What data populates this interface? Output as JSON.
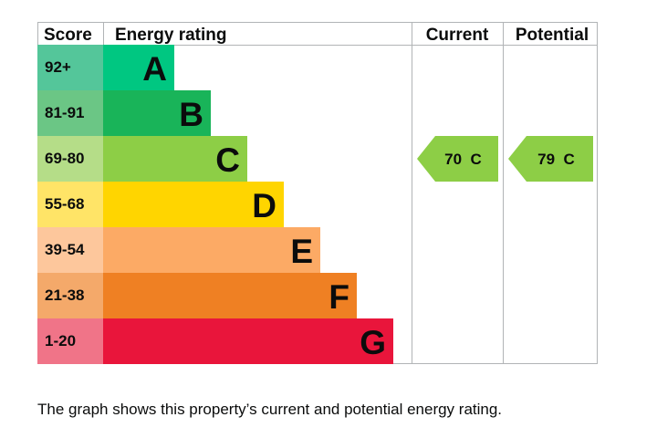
{
  "chart_data": {
    "type": "bar",
    "headers": {
      "score": "Score",
      "rating": "Energy rating",
      "current": "Current",
      "potential": "Potential"
    },
    "bands": [
      {
        "score": "92+",
        "letter": "A",
        "min": 92,
        "max": 100,
        "color": "#00c781",
        "score_bg": "#54c69a"
      },
      {
        "score": "81-91",
        "letter": "B",
        "min": 81,
        "max": 91,
        "color": "#19b459",
        "score_bg": "#6bc685"
      },
      {
        "score": "69-80",
        "letter": "C",
        "min": 69,
        "max": 80,
        "color": "#8dce46",
        "score_bg": "#b5dd88"
      },
      {
        "score": "55-68",
        "letter": "D",
        "min": 55,
        "max": 68,
        "color": "#ffd500",
        "score_bg": "#ffe467"
      },
      {
        "score": "39-54",
        "letter": "E",
        "min": 39,
        "max": 54,
        "color": "#fcaa65",
        "score_bg": "#fdc79c"
      },
      {
        "score": "21-38",
        "letter": "F",
        "min": 21,
        "max": 38,
        "color": "#ef8023",
        "score_bg": "#f4a96a"
      },
      {
        "score": "1-20",
        "letter": "G",
        "min": 1,
        "max": 20,
        "color": "#e9153b",
        "score_bg": "#f07488"
      }
    ],
    "current": {
      "value": 70,
      "band": "C",
      "label": "70  C",
      "color": "#8dce46"
    },
    "potential": {
      "value": 79,
      "band": "C",
      "label": "79  C",
      "color": "#8dce46"
    }
  },
  "caption": "The graph shows this property’s current and potential energy rating."
}
